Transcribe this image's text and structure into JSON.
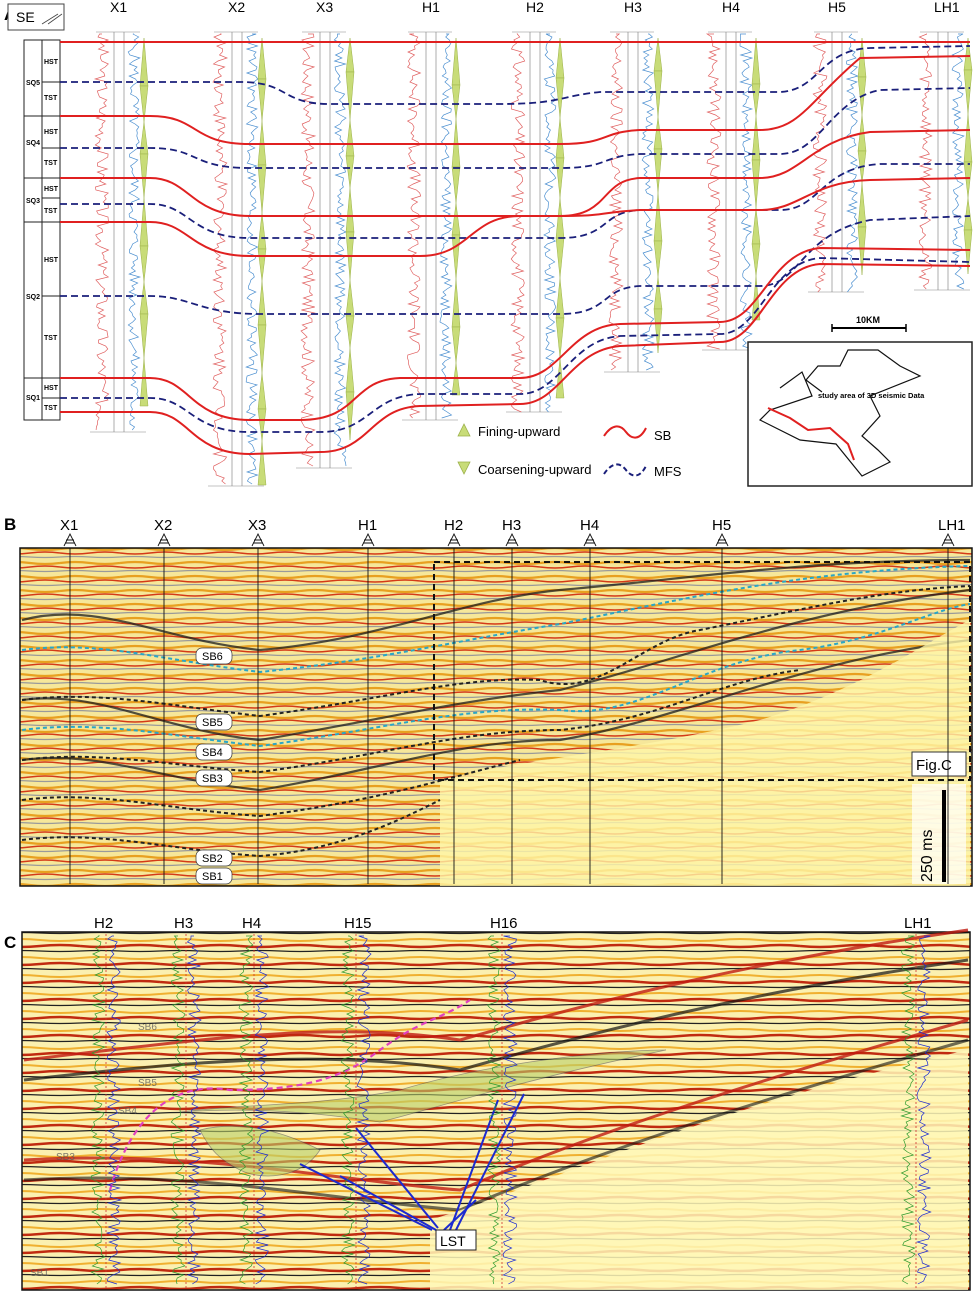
{
  "panel_a": {
    "letter": "A",
    "direction_label": "SE",
    "wells": [
      "X1",
      "X2",
      "X3",
      "H1",
      "H2",
      "H3",
      "H4",
      "H5",
      "LH1"
    ],
    "sequences": [
      {
        "name": "SQ5",
        "tracts": [
          "HST",
          "TST"
        ]
      },
      {
        "name": "SQ4",
        "tracts": [
          "HST",
          "TST"
        ]
      },
      {
        "name": "SQ3",
        "tracts": [
          "HST",
          "TST"
        ]
      },
      {
        "name": "SQ2",
        "tracts": [
          "HST",
          "TST"
        ]
      },
      {
        "name": "SQ1",
        "tracts": [
          "HST",
          "TST"
        ]
      }
    ],
    "scale_label": "10KM",
    "inset_label": "study area of 3D seismic Data",
    "legend": {
      "fining": "Fining-upward",
      "coarsening": "Coarsening-upward",
      "sb": "SB",
      "mfs": "MFS"
    },
    "colors": {
      "sb": "#e02020",
      "mfs": "#1a1f7a",
      "triangle": "#c8dc78",
      "log_red": "#e06060",
      "log_blue": "#4b8fd0"
    }
  },
  "panel_b": {
    "letter": "B",
    "wells": [
      "X1",
      "X2",
      "X3",
      "H1",
      "H2",
      "H3",
      "H4",
      "H5",
      "LH1"
    ],
    "horizons": [
      "SB6",
      "SB5",
      "SB4",
      "SB3",
      "SB2",
      "SB1"
    ],
    "box_label": "Fig.C",
    "time_scale": "250 ms"
  },
  "panel_c": {
    "letter": "C",
    "wells": [
      "H2",
      "H3",
      "H4",
      "H15",
      "H16",
      "LH1"
    ],
    "horizons": [
      "SB6",
      "SB5",
      "SB4",
      "SB3",
      "SB1"
    ],
    "lst_label": "LST"
  }
}
